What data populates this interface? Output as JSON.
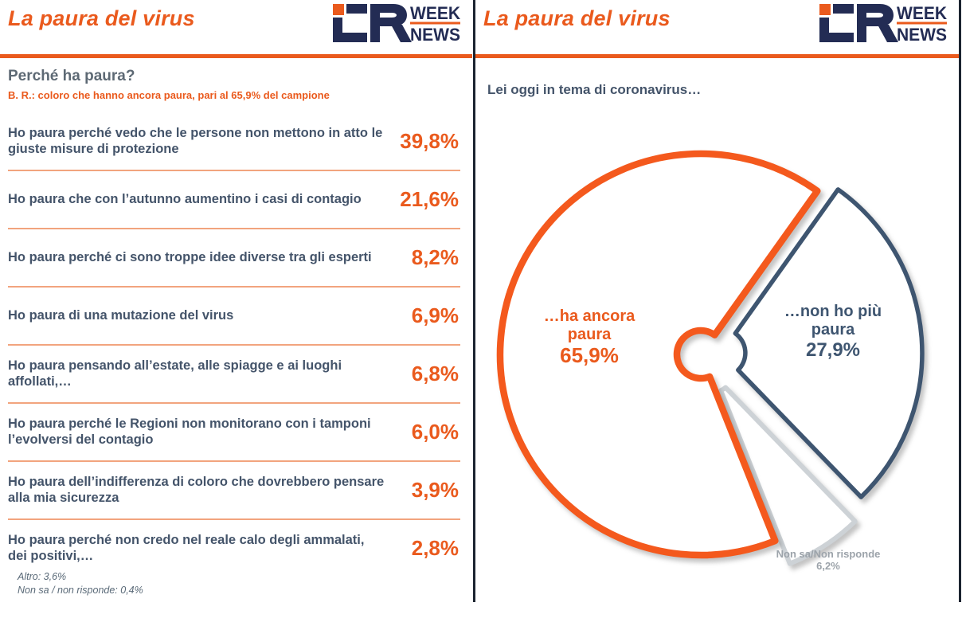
{
  "logo": {
    "week": "WEEK",
    "news": "NEWS"
  },
  "colors": {
    "accent_orange": "#EA5A1D",
    "slice_orange": "#F4591D",
    "slice_navy": "#3E5570",
    "slice_gray": "#CDD2D6",
    "text_navy": "#44546A",
    "heading_gray": "#5d6974",
    "logo_navy": "#232C54",
    "gray_label": "#9CA3AA"
  },
  "left_panel": {
    "title": "La paura del virus",
    "question": "Perché ha paura?",
    "base_note": "B. R.: coloro che hanno ancora paura, pari al 65,9% del campione",
    "items": [
      {
        "label": "Ho paura perché vedo che le persone non mettono in atto le giuste misure di protezione",
        "value": "39,8%"
      },
      {
        "label": "Ho paura che con l’autunno aumentino i casi di contagio",
        "value": "21,6%"
      },
      {
        "label": "Ho paura perché ci sono troppe idee diverse tra gli esperti",
        "value": "8,2%"
      },
      {
        "label": "Ho paura di una mutazione del virus",
        "value": "6,9%"
      },
      {
        "label": "Ho paura pensando all’estate, alle spiagge e ai luoghi affollati,…",
        "value": "6,8%"
      },
      {
        "label": "Ho paura perché le Regioni non monitorano con i tamponi l’evolversi del contagio",
        "value": "6,0%"
      },
      {
        "label": "Ho paura dell’indifferenza di coloro che dovrebbero pensare alla mia sicurezza",
        "value": "3,9%"
      },
      {
        "label": "Ho paura perché non credo nel reale calo degli ammalati, dei positivi,…",
        "value": "2,8%"
      }
    ],
    "footnotes": [
      "Altro: 3,6%",
      "Non sa / non risponde: 0,4%"
    ]
  },
  "right_panel": {
    "title": "La paura del virus",
    "question": "Lei oggi in tema di coronavirus…",
    "pie_labels": [
      {
        "lines": [
          "…non ho più",
          "paura"
        ],
        "pct": "27,9%",
        "color": "#3E5570"
      },
      {
        "lines": [
          "Non sa/Non risponde"
        ],
        "pct": "6,2%",
        "color": "#9CA3AA"
      },
      {
        "lines": [
          "…ha ancora",
          "paura"
        ],
        "pct": "65,9%",
        "color": "#EA5A1D"
      }
    ]
  },
  "chart_data": [
    {
      "type": "bar",
      "title": "Perché ha paura?",
      "subtitle": "B. R.: coloro che hanno ancora paura, pari al 65,9% del campione",
      "categories": [
        "Ho paura perché vedo che le persone non mettono in atto le giuste misure di protezione",
        "Ho paura che con l’autunno aumentino i casi di contagio",
        "Ho paura perché ci sono troppe idee diverse tra gli esperti",
        "Ho paura di una mutazione del virus",
        "Ho paura pensando all’estate, alle spiagge e ai luoghi affollati,…",
        "Ho paura perché le Regioni non monitorano con i tamponi l’evolversi del contagio",
        "Ho paura dell’indifferenza di coloro che dovrebbero pensare alla mia sicurezza",
        "Ho paura perché non credo nel reale calo degli ammalati, dei positivi,…"
      ],
      "values": [
        39.8,
        21.6,
        8.2,
        6.9,
        6.8,
        6.0,
        3.9,
        2.8
      ],
      "unit": "%",
      "annotations": [
        "Altro: 3,6%",
        "Non sa / non risponde: 0,4%"
      ]
    },
    {
      "type": "pie",
      "title": "Lei oggi in tema di coronavirus…",
      "labels": [
        "…non ho più paura",
        "Non sa/Non risponde",
        "…ha ancora paura"
      ],
      "values": [
        27.9,
        6.2,
        65.9
      ],
      "colors": [
        "#3E5570",
        "#CDD2D6",
        "#F4591D"
      ],
      "start_angle_deg": 35.5,
      "direction": "clockwise",
      "style": "outlined exploded donut, white fill, drop shadow",
      "legend_position": "labels inside/near slices"
    }
  ]
}
